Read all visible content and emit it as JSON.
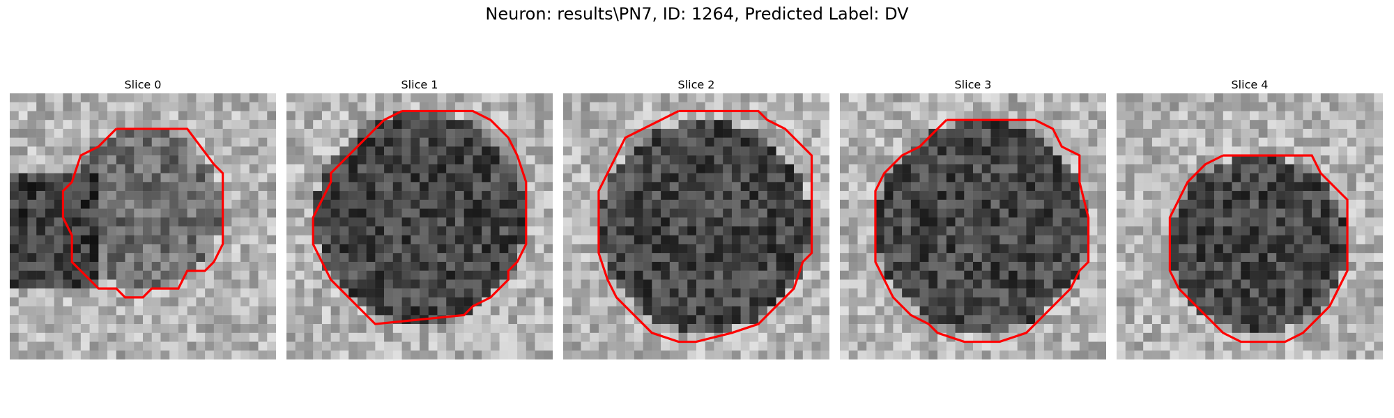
{
  "figure": {
    "title": "Neuron: results\\PN7, ID: 1264, Predicted Label: DV",
    "outline_color": "#ff0000"
  },
  "panels": [
    {
      "title": "Slice 0",
      "image_description_style": "grayscale noisy patch"
    },
    {
      "title": "Slice 1",
      "image_description_style": "grayscale noisy patch"
    },
    {
      "title": "Slice 2",
      "image_description_style": "grayscale noisy patch"
    },
    {
      "title": "Slice 3",
      "image_description_style": "grayscale noisy patch"
    },
    {
      "title": "Slice 4",
      "image_description_style": "grayscale noisy patch"
    }
  ]
}
